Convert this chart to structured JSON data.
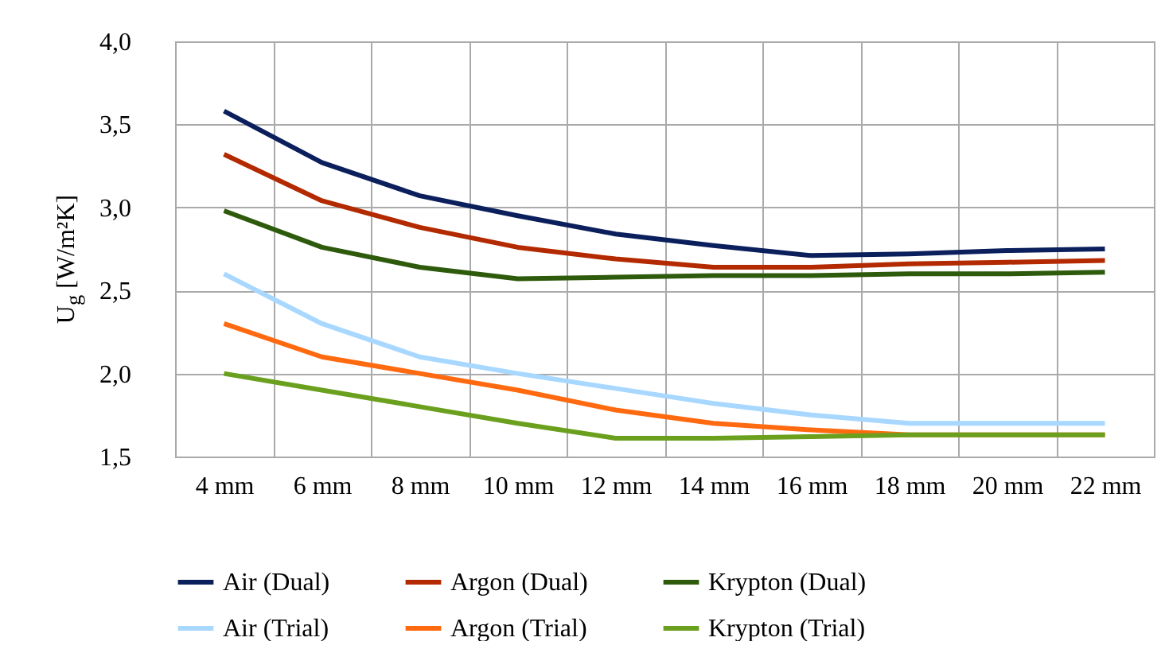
{
  "chart_data": {
    "type": "line",
    "ylabel": "U$_{g}$ [W/m²K]",
    "categories": [
      "4 mm",
      "6 mm",
      "8 mm",
      "10 mm",
      "12 mm",
      "14 mm",
      "16 mm",
      "18 mm",
      "20 mm",
      "22 mm"
    ],
    "series": [
      {
        "name": "Air (Dual)",
        "color": "#0a1f5c",
        "values": [
          3.58,
          3.27,
          3.07,
          2.95,
          2.84,
          2.77,
          2.71,
          2.72,
          2.74,
          2.75
        ]
      },
      {
        "name": "Argon (Dual)",
        "color": "#b32a00",
        "values": [
          3.32,
          3.04,
          2.88,
          2.76,
          2.69,
          2.64,
          2.64,
          2.66,
          2.67,
          2.68
        ]
      },
      {
        "name": "Krypton (Dual)",
        "color": "#2e5a0c",
        "values": [
          2.98,
          2.76,
          2.64,
          2.57,
          2.58,
          2.59,
          2.59,
          2.6,
          2.6,
          2.61
        ]
      },
      {
        "name": "Air (Trial)",
        "color": "#a8d8ff",
        "values": [
          2.6,
          2.3,
          2.1,
          2.0,
          1.91,
          1.82,
          1.75,
          1.7,
          1.7,
          1.7
        ]
      },
      {
        "name": "Argon (Trial)",
        "color": "#ff6a10",
        "values": [
          2.3,
          2.1,
          2.0,
          1.9,
          1.78,
          1.7,
          1.66,
          1.63,
          1.63,
          1.63
        ]
      },
      {
        "name": "Krypton (Trial)",
        "color": "#6aa01e",
        "values": [
          2.0,
          1.9,
          1.8,
          1.7,
          1.61,
          1.61,
          1.62,
          1.63,
          1.63,
          1.63
        ]
      }
    ],
    "ylim": [
      1.5,
      4.0
    ],
    "yticks": [
      {
        "value": 1.5,
        "label": "1,5"
      },
      {
        "value": 2.0,
        "label": "2,0"
      },
      {
        "value": 2.5,
        "label": "2,5"
      },
      {
        "value": 3.0,
        "label": "3,0"
      },
      {
        "value": 3.5,
        "label": "3,5"
      },
      {
        "value": 4.0,
        "label": "4,0"
      }
    ],
    "grid": true,
    "legend": "bottom",
    "marker": "none",
    "line_style": "solid"
  }
}
